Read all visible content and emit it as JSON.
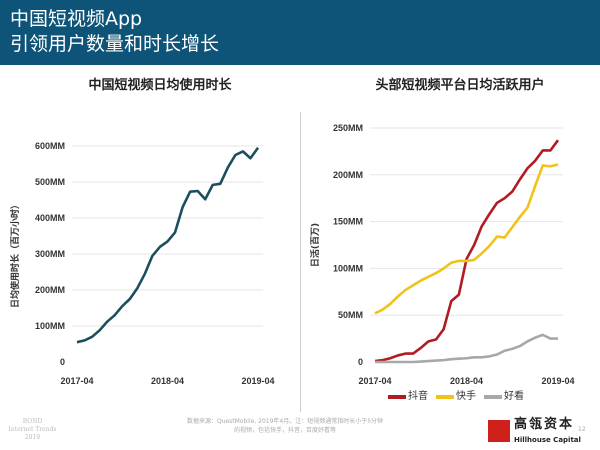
{
  "header": {
    "title_line1": "中国短视频App",
    "title_line2": "引领用户数量和时长增长",
    "background": "#0e5478"
  },
  "chart_data": [
    {
      "type": "line",
      "title": "中国短视频日均使用时长",
      "ylabel": "日均使用时长（百万小时）",
      "xlabel": "",
      "x_start": "2017-04",
      "x_end": "2019-04",
      "xticks": [
        "2017-04",
        "2018-04",
        "2019-04"
      ],
      "yticks": [
        "0",
        "100MM",
        "200MM",
        "300MM",
        "400MM",
        "500MM",
        "600MM"
      ],
      "ylim": [
        0,
        600
      ],
      "grid": true,
      "series": [
        {
          "color": "#1b4e5e",
          "values": [
            55,
            60,
            70,
            88,
            112,
            130,
            155,
            175,
            205,
            245,
            295,
            320,
            335,
            360,
            430,
            473,
            475,
            452,
            492,
            495,
            540,
            575,
            585,
            566,
            595
          ]
        }
      ]
    },
    {
      "type": "line",
      "title": "头部短视频平台日均活跃用户",
      "ylabel": "日活(百万)",
      "xlabel": "",
      "x_start": "2017-04",
      "x_end": "2019-04",
      "xticks": [
        "2017-04",
        "2018-04",
        "2019-04"
      ],
      "yticks": [
        "0",
        "50MM",
        "100MM",
        "150MM",
        "200MM",
        "250MM"
      ],
      "ylim": [
        0,
        250
      ],
      "grid": true,
      "legend": "bottom",
      "series": [
        {
          "name": "抖音",
          "color": "#b01c22",
          "values": [
            1,
            2,
            4,
            7,
            9,
            9,
            15,
            22,
            24,
            35,
            65,
            72,
            110,
            125,
            145,
            158,
            170,
            175,
            182,
            195,
            207,
            215,
            226,
            226,
            237
          ]
        },
        {
          "name": "快手",
          "color": "#f2c21b",
          "values": [
            52,
            56,
            62,
            70,
            77,
            82,
            87,
            91,
            95,
            100,
            106,
            108,
            108,
            109,
            116,
            124,
            134,
            133,
            144,
            155,
            165,
            188,
            210,
            209,
            211
          ]
        },
        {
          "name": "好看",
          "color": "#a8a8a8",
          "values": [
            0,
            0,
            0,
            0,
            0,
            0,
            0.5,
            1,
            1.5,
            2,
            3,
            3.5,
            4,
            5,
            5,
            6,
            8,
            12,
            14,
            17,
            22,
            26,
            29,
            25,
            25
          ]
        }
      ]
    }
  ],
  "footer": {
    "source_line1": "数据来源：QuestMobile, 2019年4月。注：短视频通常指时长小于5分钟",
    "source_line2": "的视频，包括快手，抖音，百度好看等",
    "bond_line1": "BOND",
    "bond_line2": "Internet Trends",
    "bond_line3": "2019",
    "logo_cn": "高瓴资本",
    "logo_en": "Hillhouse Capital",
    "page_number": "12"
  }
}
